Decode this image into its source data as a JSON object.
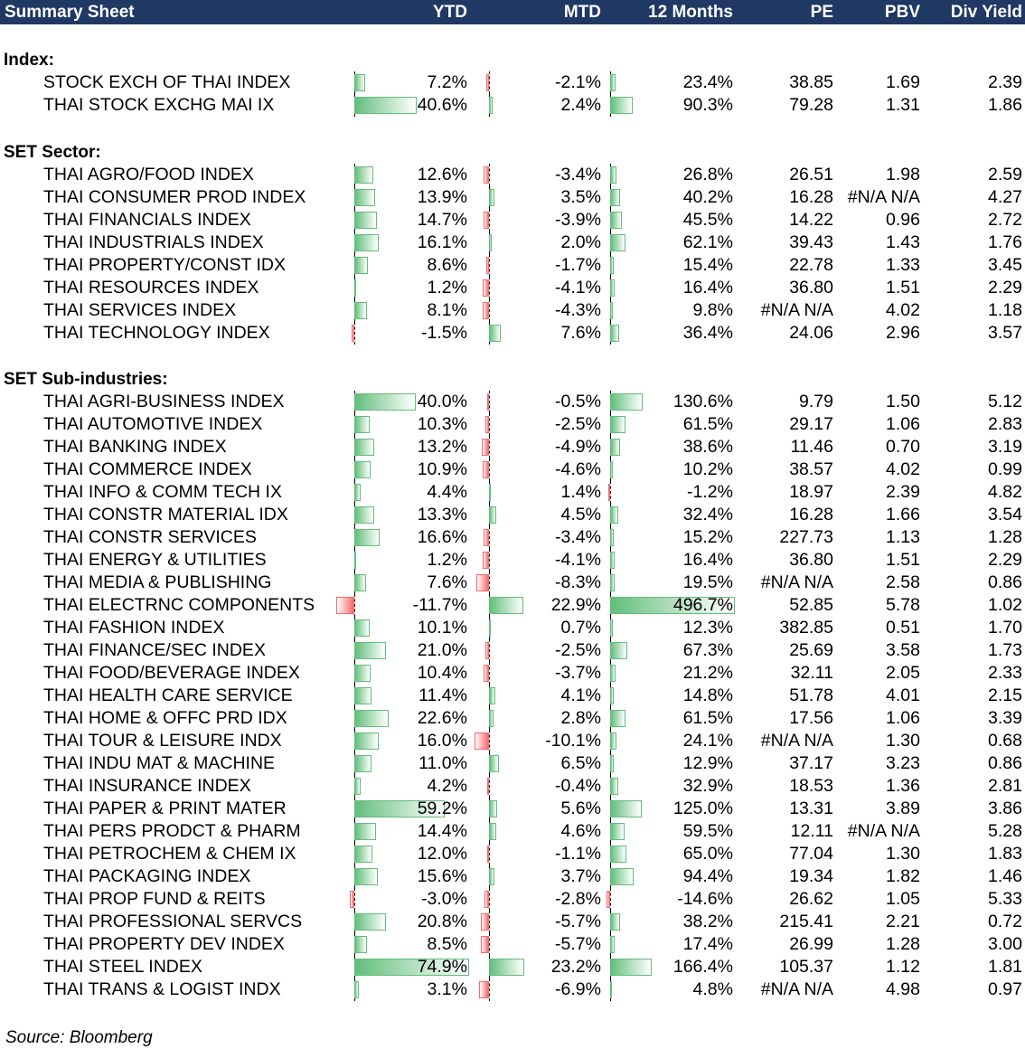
{
  "header": {
    "title": "Summary Sheet",
    "columns": [
      "YTD",
      "MTD",
      "12 Months",
      "PE",
      "PBV",
      "Div Yield"
    ]
  },
  "colors": {
    "header_bg": "#1f3864",
    "positive_bar": "#63be7b",
    "negative_bar": "#f8696b"
  },
  "sections": [
    {
      "title": "Index:",
      "rows": [
        {
          "name": "STOCK EXCH OF THAI INDEX",
          "ytd": "7.2%",
          "mtd": "-2.1%",
          "m12": "23.4%",
          "pe": "38.85",
          "pbv": "1.69",
          "dy": "2.39"
        },
        {
          "name": "THAI STOCK EXCHG MAI IX",
          "ytd": "40.6%",
          "mtd": "2.4%",
          "m12": "90.3%",
          "pe": "79.28",
          "pbv": "1.31",
          "dy": "1.86"
        }
      ]
    },
    {
      "title": "SET Sector:",
      "rows": [
        {
          "name": "THAI AGRO/FOOD INDEX",
          "ytd": "12.6%",
          "mtd": "-3.4%",
          "m12": "26.8%",
          "pe": "26.51",
          "pbv": "1.98",
          "dy": "2.59"
        },
        {
          "name": "THAI CONSUMER PROD INDEX",
          "ytd": "13.9%",
          "mtd": "3.5%",
          "m12": "40.2%",
          "pe": "16.28",
          "pbv": "#N/A N/A",
          "dy": "4.27"
        },
        {
          "name": "THAI FINANCIALS INDEX",
          "ytd": "14.7%",
          "mtd": "-3.9%",
          "m12": "45.5%",
          "pe": "14.22",
          "pbv": "0.96",
          "dy": "2.72"
        },
        {
          "name": "THAI INDUSTRIALS INDEX",
          "ytd": "16.1%",
          "mtd": "2.0%",
          "m12": "62.1%",
          "pe": "39.43",
          "pbv": "1.43",
          "dy": "1.76"
        },
        {
          "name": "THAI PROPERTY/CONST IDX",
          "ytd": "8.6%",
          "mtd": "-1.7%",
          "m12": "15.4%",
          "pe": "22.78",
          "pbv": "1.33",
          "dy": "3.45"
        },
        {
          "name": "THAI RESOURCES INDEX",
          "ytd": "1.2%",
          "mtd": "-4.1%",
          "m12": "16.4%",
          "pe": "36.80",
          "pbv": "1.51",
          "dy": "2.29"
        },
        {
          "name": "THAI SERVICES INDEX",
          "ytd": "8.1%",
          "mtd": "-4.3%",
          "m12": "9.8%",
          "pe": "#N/A N/A",
          "pbv": "4.02",
          "dy": "1.18"
        },
        {
          "name": "THAI TECHNOLOGY INDEX",
          "ytd": "-1.5%",
          "mtd": "7.6%",
          "m12": "36.4%",
          "pe": "24.06",
          "pbv": "2.96",
          "dy": "3.57"
        }
      ]
    },
    {
      "title": "SET Sub-industries:",
      "rows": [
        {
          "name": "THAI AGRI-BUSINESS INDEX",
          "ytd": "40.0%",
          "mtd": "-0.5%",
          "m12": "130.6%",
          "pe": "9.79",
          "pbv": "1.50",
          "dy": "5.12"
        },
        {
          "name": "THAI AUTOMOTIVE INDEX",
          "ytd": "10.3%",
          "mtd": "-2.5%",
          "m12": "61.5%",
          "pe": "29.17",
          "pbv": "1.06",
          "dy": "2.83"
        },
        {
          "name": "THAI BANKING INDEX",
          "ytd": "13.2%",
          "mtd": "-4.9%",
          "m12": "38.6%",
          "pe": "11.46",
          "pbv": "0.70",
          "dy": "3.19"
        },
        {
          "name": "THAI COMMERCE INDEX",
          "ytd": "10.9%",
          "mtd": "-4.6%",
          "m12": "10.2%",
          "pe": "38.57",
          "pbv": "4.02",
          "dy": "0.99"
        },
        {
          "name": "THAI INFO & COMM TECH IX",
          "ytd": "4.4%",
          "mtd": "1.4%",
          "m12": "-1.2%",
          "pe": "18.97",
          "pbv": "2.39",
          "dy": "4.82"
        },
        {
          "name": "THAI CONSTR MATERIAL IDX",
          "ytd": "13.3%",
          "mtd": "4.5%",
          "m12": "32.4%",
          "pe": "16.28",
          "pbv": "1.66",
          "dy": "3.54"
        },
        {
          "name": "THAI CONSTR SERVICES",
          "ytd": "16.6%",
          "mtd": "-3.4%",
          "m12": "15.2%",
          "pe": "227.73",
          "pbv": "1.13",
          "dy": "1.28"
        },
        {
          "name": "THAI ENERGY & UTILITIES",
          "ytd": "1.2%",
          "mtd": "-4.1%",
          "m12": "16.4%",
          "pe": "36.80",
          "pbv": "1.51",
          "dy": "2.29"
        },
        {
          "name": "THAI MEDIA & PUBLISHING",
          "ytd": "7.6%",
          "mtd": "-8.3%",
          "m12": "19.5%",
          "pe": "#N/A N/A",
          "pbv": "2.58",
          "dy": "0.86"
        },
        {
          "name": "THAI ELECTRNC COMPONENTS",
          "ytd": "-11.7%",
          "mtd": "22.9%",
          "m12": "496.7%",
          "pe": "52.85",
          "pbv": "5.78",
          "dy": "1.02"
        },
        {
          "name": "THAI FASHION INDEX",
          "ytd": "10.1%",
          "mtd": "0.7%",
          "m12": "12.3%",
          "pe": "382.85",
          "pbv": "0.51",
          "dy": "1.70"
        },
        {
          "name": "THAI FINANCE/SEC INDEX",
          "ytd": "21.0%",
          "mtd": "-2.5%",
          "m12": "67.3%",
          "pe": "25.69",
          "pbv": "3.58",
          "dy": "1.73"
        },
        {
          "name": "THAI FOOD/BEVERAGE INDEX",
          "ytd": "10.4%",
          "mtd": "-3.7%",
          "m12": "21.2%",
          "pe": "32.11",
          "pbv": "2.05",
          "dy": "2.33"
        },
        {
          "name": "THAI HEALTH CARE SERVICE",
          "ytd": "11.4%",
          "mtd": "4.1%",
          "m12": "14.8%",
          "pe": "51.78",
          "pbv": "4.01",
          "dy": "2.15"
        },
        {
          "name": "THAI HOME & OFFC PRD IDX",
          "ytd": "22.6%",
          "mtd": "2.8%",
          "m12": "61.5%",
          "pe": "17.56",
          "pbv": "1.06",
          "dy": "3.39"
        },
        {
          "name": "THAI TOUR & LEISURE INDX",
          "ytd": "16.0%",
          "mtd": "-10.1%",
          "m12": "24.1%",
          "pe": "#N/A N/A",
          "pbv": "1.30",
          "dy": "0.68"
        },
        {
          "name": "THAI INDU MAT & MACHINE",
          "ytd": "11.0%",
          "mtd": "6.5%",
          "m12": "12.9%",
          "pe": "37.17",
          "pbv": "3.23",
          "dy": "0.86"
        },
        {
          "name": "THAI INSURANCE INDEX",
          "ytd": "4.2%",
          "mtd": "-0.4%",
          "m12": "32.9%",
          "pe": "18.53",
          "pbv": "1.36",
          "dy": "2.81"
        },
        {
          "name": "THAI PAPER & PRINT MATER",
          "ytd": "59.2%",
          "mtd": "5.6%",
          "m12": "125.0%",
          "pe": "13.31",
          "pbv": "3.89",
          "dy": "3.86"
        },
        {
          "name": "THAI PERS PRODCT & PHARM",
          "ytd": "14.4%",
          "mtd": "4.6%",
          "m12": "59.5%",
          "pe": "12.11",
          "pbv": "#N/A N/A",
          "dy": "5.28"
        },
        {
          "name": "THAI PETROCHEM & CHEM IX",
          "ytd": "12.0%",
          "mtd": "-1.1%",
          "m12": "65.0%",
          "pe": "77.04",
          "pbv": "1.30",
          "dy": "1.83"
        },
        {
          "name": "THAI PACKAGING INDEX",
          "ytd": "15.6%",
          "mtd": "3.7%",
          "m12": "94.4%",
          "pe": "19.34",
          "pbv": "1.82",
          "dy": "1.46"
        },
        {
          "name": "THAI PROP FUND & REITS",
          "ytd": "-3.0%",
          "mtd": "-2.8%",
          "m12": "-14.6%",
          "pe": "26.62",
          "pbv": "1.05",
          "dy": "5.33"
        },
        {
          "name": "THAI PROFESSIONAL SERVCS",
          "ytd": "20.8%",
          "mtd": "-5.7%",
          "m12": "38.2%",
          "pe": "215.41",
          "pbv": "2.21",
          "dy": "0.72"
        },
        {
          "name": "THAI PROPERTY DEV INDEX",
          "ytd": "8.5%",
          "mtd": "-5.7%",
          "m12": "17.4%",
          "pe": "26.99",
          "pbv": "1.28",
          "dy": "3.00"
        },
        {
          "name": "THAI STEEL INDEX",
          "ytd": "74.9%",
          "mtd": "23.2%",
          "m12": "166.4%",
          "pe": "105.37",
          "pbv": "1.12",
          "dy": "1.81"
        },
        {
          "name": "THAI TRANS & LOGIST INDX",
          "ytd": "3.1%",
          "mtd": "-6.9%",
          "m12": "4.8%",
          "pe": "#N/A N/A",
          "pbv": "4.98",
          "dy": "0.97"
        }
      ]
    }
  ],
  "footer": {
    "source": "Source: Bloomberg"
  }
}
